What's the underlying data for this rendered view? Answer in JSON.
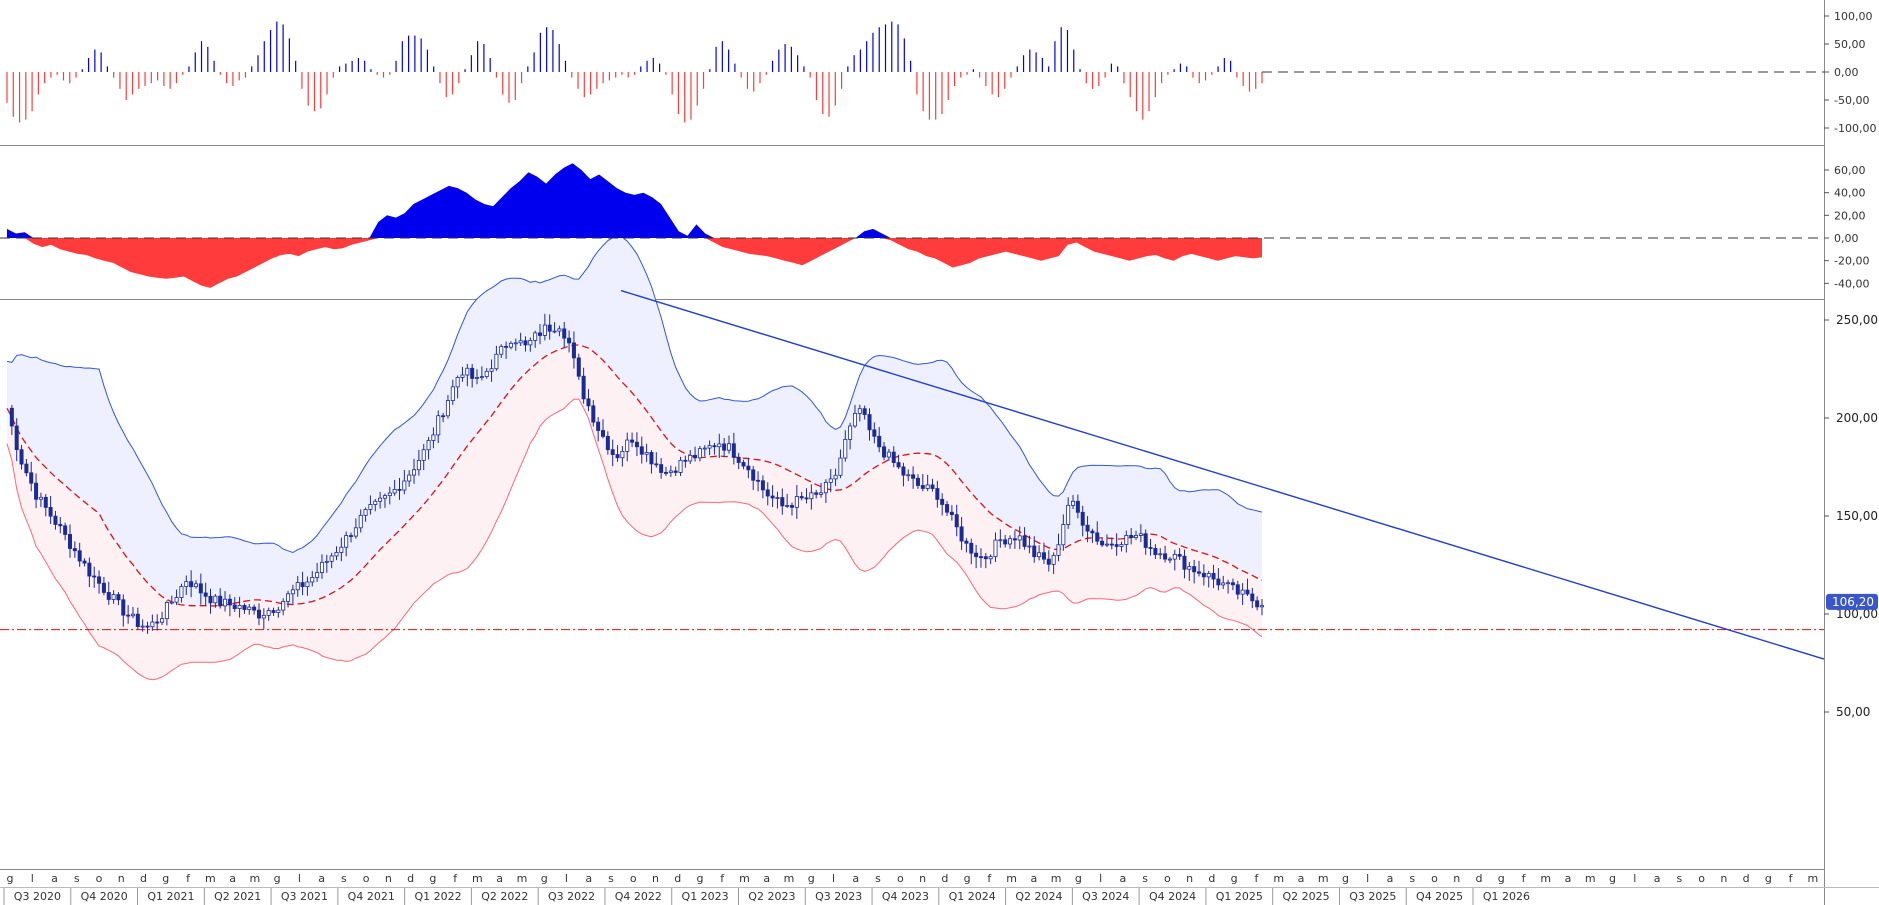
{
  "chart_data": {
    "type": "candlestick-with-indicators",
    "colors": {
      "bull": "#0000ee",
      "bear": "#ff3b3b",
      "candle": "#1a2a99",
      "band_upper_fill": "#eef0ff",
      "band_lower_fill": "#fdf1f3",
      "band_upper_line": "#3355dd",
      "band_lower_line": "#ff6677",
      "mid_line": "#dd1111",
      "trendline": "#1f3ed6",
      "support": "#dd1111",
      "last_price_bg": "#3a57c9"
    },
    "quarter_labels": [
      "Q3 2020",
      "Q4 2020",
      "Q1 2021",
      "Q2 2021",
      "Q3 2021",
      "Q4 2021",
      "Q1 2022",
      "Q2 2022",
      "Q3 2022",
      "Q4 2022",
      "Q1 2023",
      "Q2 2023",
      "Q3 2023",
      "Q4 2023",
      "Q1 2024",
      "Q2 2024",
      "Q3 2024",
      "Q4 2024",
      "Q1 2025",
      "Q2 2025",
      "Q3 2025",
      "Q4 2025",
      "Q1 2026"
    ],
    "month_labels": [
      "g",
      "l",
      "a",
      "s",
      "o",
      "n",
      "d",
      "g",
      "f",
      "m",
      "a",
      "m",
      "g",
      "l",
      "a",
      "s",
      "o",
      "n",
      "d",
      "g",
      "f",
      "m",
      "a",
      "m",
      "g",
      "l",
      "a",
      "s",
      "o",
      "n",
      "d",
      "g",
      "f",
      "m",
      "a",
      "m",
      "g",
      "l",
      "a",
      "s",
      "o",
      "n",
      "d",
      "g",
      "f",
      "m",
      "a",
      "m",
      "g",
      "l",
      "a",
      "s",
      "o",
      "n",
      "d",
      "g",
      "f",
      "m",
      "a",
      "m",
      "g",
      "l",
      "a",
      "s",
      "o",
      "n",
      "d",
      "g",
      "f",
      "m",
      "a",
      "m",
      "g",
      "l",
      "a",
      "s",
      "o",
      "n",
      "d",
      "g",
      "f",
      "m"
    ],
    "oscillator1": {
      "yticks": [
        "100,00",
        "50,00",
        "0,00",
        "-50,00",
        "-100,00"
      ],
      "yrange": [
        -110,
        110
      ],
      "values": [
        -55,
        -80,
        -90,
        -85,
        -70,
        -40,
        -20,
        -10,
        -5,
        -15,
        -20,
        -10,
        5,
        25,
        40,
        35,
        10,
        -10,
        -30,
        -50,
        -40,
        -30,
        -25,
        -20,
        -15,
        -25,
        -30,
        -20,
        -5,
        10,
        35,
        55,
        45,
        20,
        -5,
        -20,
        -25,
        -15,
        -10,
        10,
        30,
        55,
        75,
        90,
        85,
        60,
        20,
        -30,
        -60,
        -70,
        -65,
        -40,
        -10,
        10,
        15,
        20,
        25,
        20,
        5,
        -5,
        -10,
        -5,
        20,
        55,
        65,
        65,
        60,
        40,
        10,
        -20,
        -45,
        -40,
        -20,
        5,
        30,
        55,
        50,
        25,
        -10,
        -40,
        -55,
        -50,
        -20,
        10,
        35,
        70,
        80,
        75,
        50,
        20,
        -10,
        -30,
        -45,
        -40,
        -30,
        -20,
        -15,
        -10,
        -5,
        -10,
        -5,
        10,
        20,
        25,
        15,
        -5,
        -40,
        -75,
        -90,
        -85,
        -60,
        -30,
        5,
        45,
        55,
        40,
        15,
        -10,
        -30,
        -35,
        -20,
        -5,
        20,
        40,
        50,
        45,
        30,
        10,
        -10,
        -50,
        -75,
        -80,
        -60,
        -30,
        10,
        30,
        40,
        55,
        70,
        80,
        85,
        90,
        85,
        60,
        20,
        -40,
        -70,
        -85,
        -85,
        -75,
        -50,
        -25,
        -10,
        -5,
        5,
        -10,
        -25,
        -40,
        -45,
        -30,
        -10,
        10,
        30,
        40,
        35,
        25,
        10,
        55,
        80,
        75,
        40,
        5,
        -20,
        -30,
        -25,
        -10,
        15,
        10,
        -20,
        -45,
        -70,
        -85,
        -70,
        -45,
        -20,
        -5,
        5,
        15,
        10,
        -10,
        -20,
        -15,
        -5,
        10,
        25,
        20,
        -10,
        -25,
        -35,
        -30,
        -20
      ]
    },
    "oscillator2": {
      "yticks": [
        "60,00",
        "40,00",
        "20,00",
        "0,00",
        "-20,00",
        "-40,00"
      ],
      "yrange": [
        -52,
        72
      ],
      "values": [
        8,
        4,
        5,
        -5,
        -8,
        -6,
        -10,
        -12,
        -14,
        -15,
        -18,
        -20,
        -22,
        -26,
        -30,
        -32,
        -34,
        -35,
        -36,
        -35,
        -34,
        -38,
        -42,
        -44,
        -40,
        -36,
        -34,
        -30,
        -26,
        -22,
        -18,
        -15,
        -14,
        -16,
        -12,
        -10,
        -8,
        -10,
        -9,
        -6,
        -4,
        -2,
        14,
        20,
        18,
        22,
        30,
        34,
        38,
        42,
        46,
        44,
        40,
        34,
        30,
        28,
        36,
        44,
        50,
        58,
        54,
        48,
        56,
        62,
        66,
        60,
        52,
        56,
        50,
        44,
        40,
        38,
        40,
        36,
        30,
        18,
        6,
        2,
        12,
        4,
        -4,
        -8,
        -10,
        -12,
        -14,
        -15,
        -16,
        -18,
        -20,
        -22,
        -24,
        -20,
        -16,
        -12,
        -8,
        -4,
        0,
        6,
        8,
        4,
        -2,
        -6,
        -10,
        -12,
        -16,
        -18,
        -22,
        -26,
        -24,
        -22,
        -18,
        -16,
        -14,
        -12,
        -14,
        -16,
        -18,
        -20,
        -18,
        -16,
        -6,
        -4,
        -8,
        -12,
        -14,
        -16,
        -18,
        -20,
        -18,
        -16,
        -15,
        -18,
        -20,
        -16,
        -14,
        -16,
        -18,
        -20,
        -18,
        -16,
        -17,
        -18,
        -17
      ],
      "clip_note": ""
    },
    "price": {
      "yticks": [
        "250,00",
        "200,00",
        "150,00",
        "100,00",
        "50,00"
      ],
      "yrange": [
        40,
        285
      ],
      "support_level": 92,
      "last_price": "106,20",
      "trendline": {
        "start_index": 124,
        "start_value": 265,
        "end_value": 77
      }
    }
  }
}
